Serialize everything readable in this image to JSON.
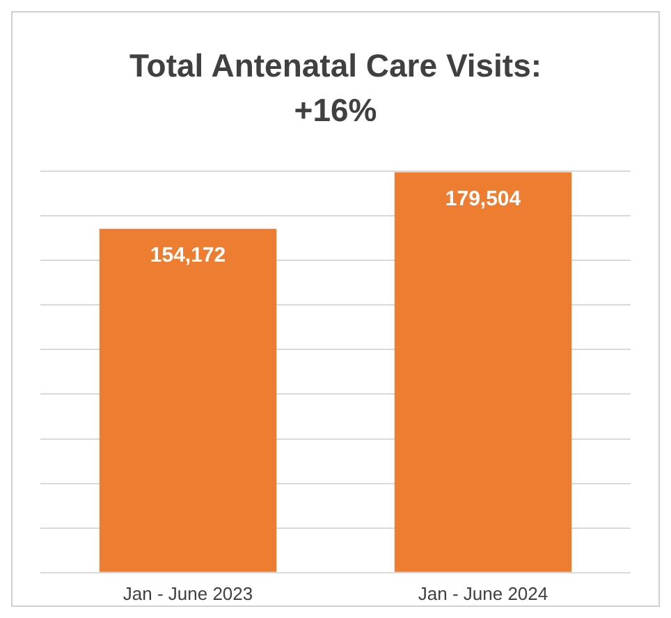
{
  "chart_data": {
    "type": "bar",
    "title": "Total Antenatal Care Visits: +16%",
    "categories": [
      "Jan - June 2023",
      "Jan - June 2024"
    ],
    "values": [
      154172,
      179504
    ],
    "value_labels": [
      "154,172",
      "179,504"
    ],
    "color": "#ed7d31",
    "tick_labels": "x",
    "grid": "y"
  }
}
